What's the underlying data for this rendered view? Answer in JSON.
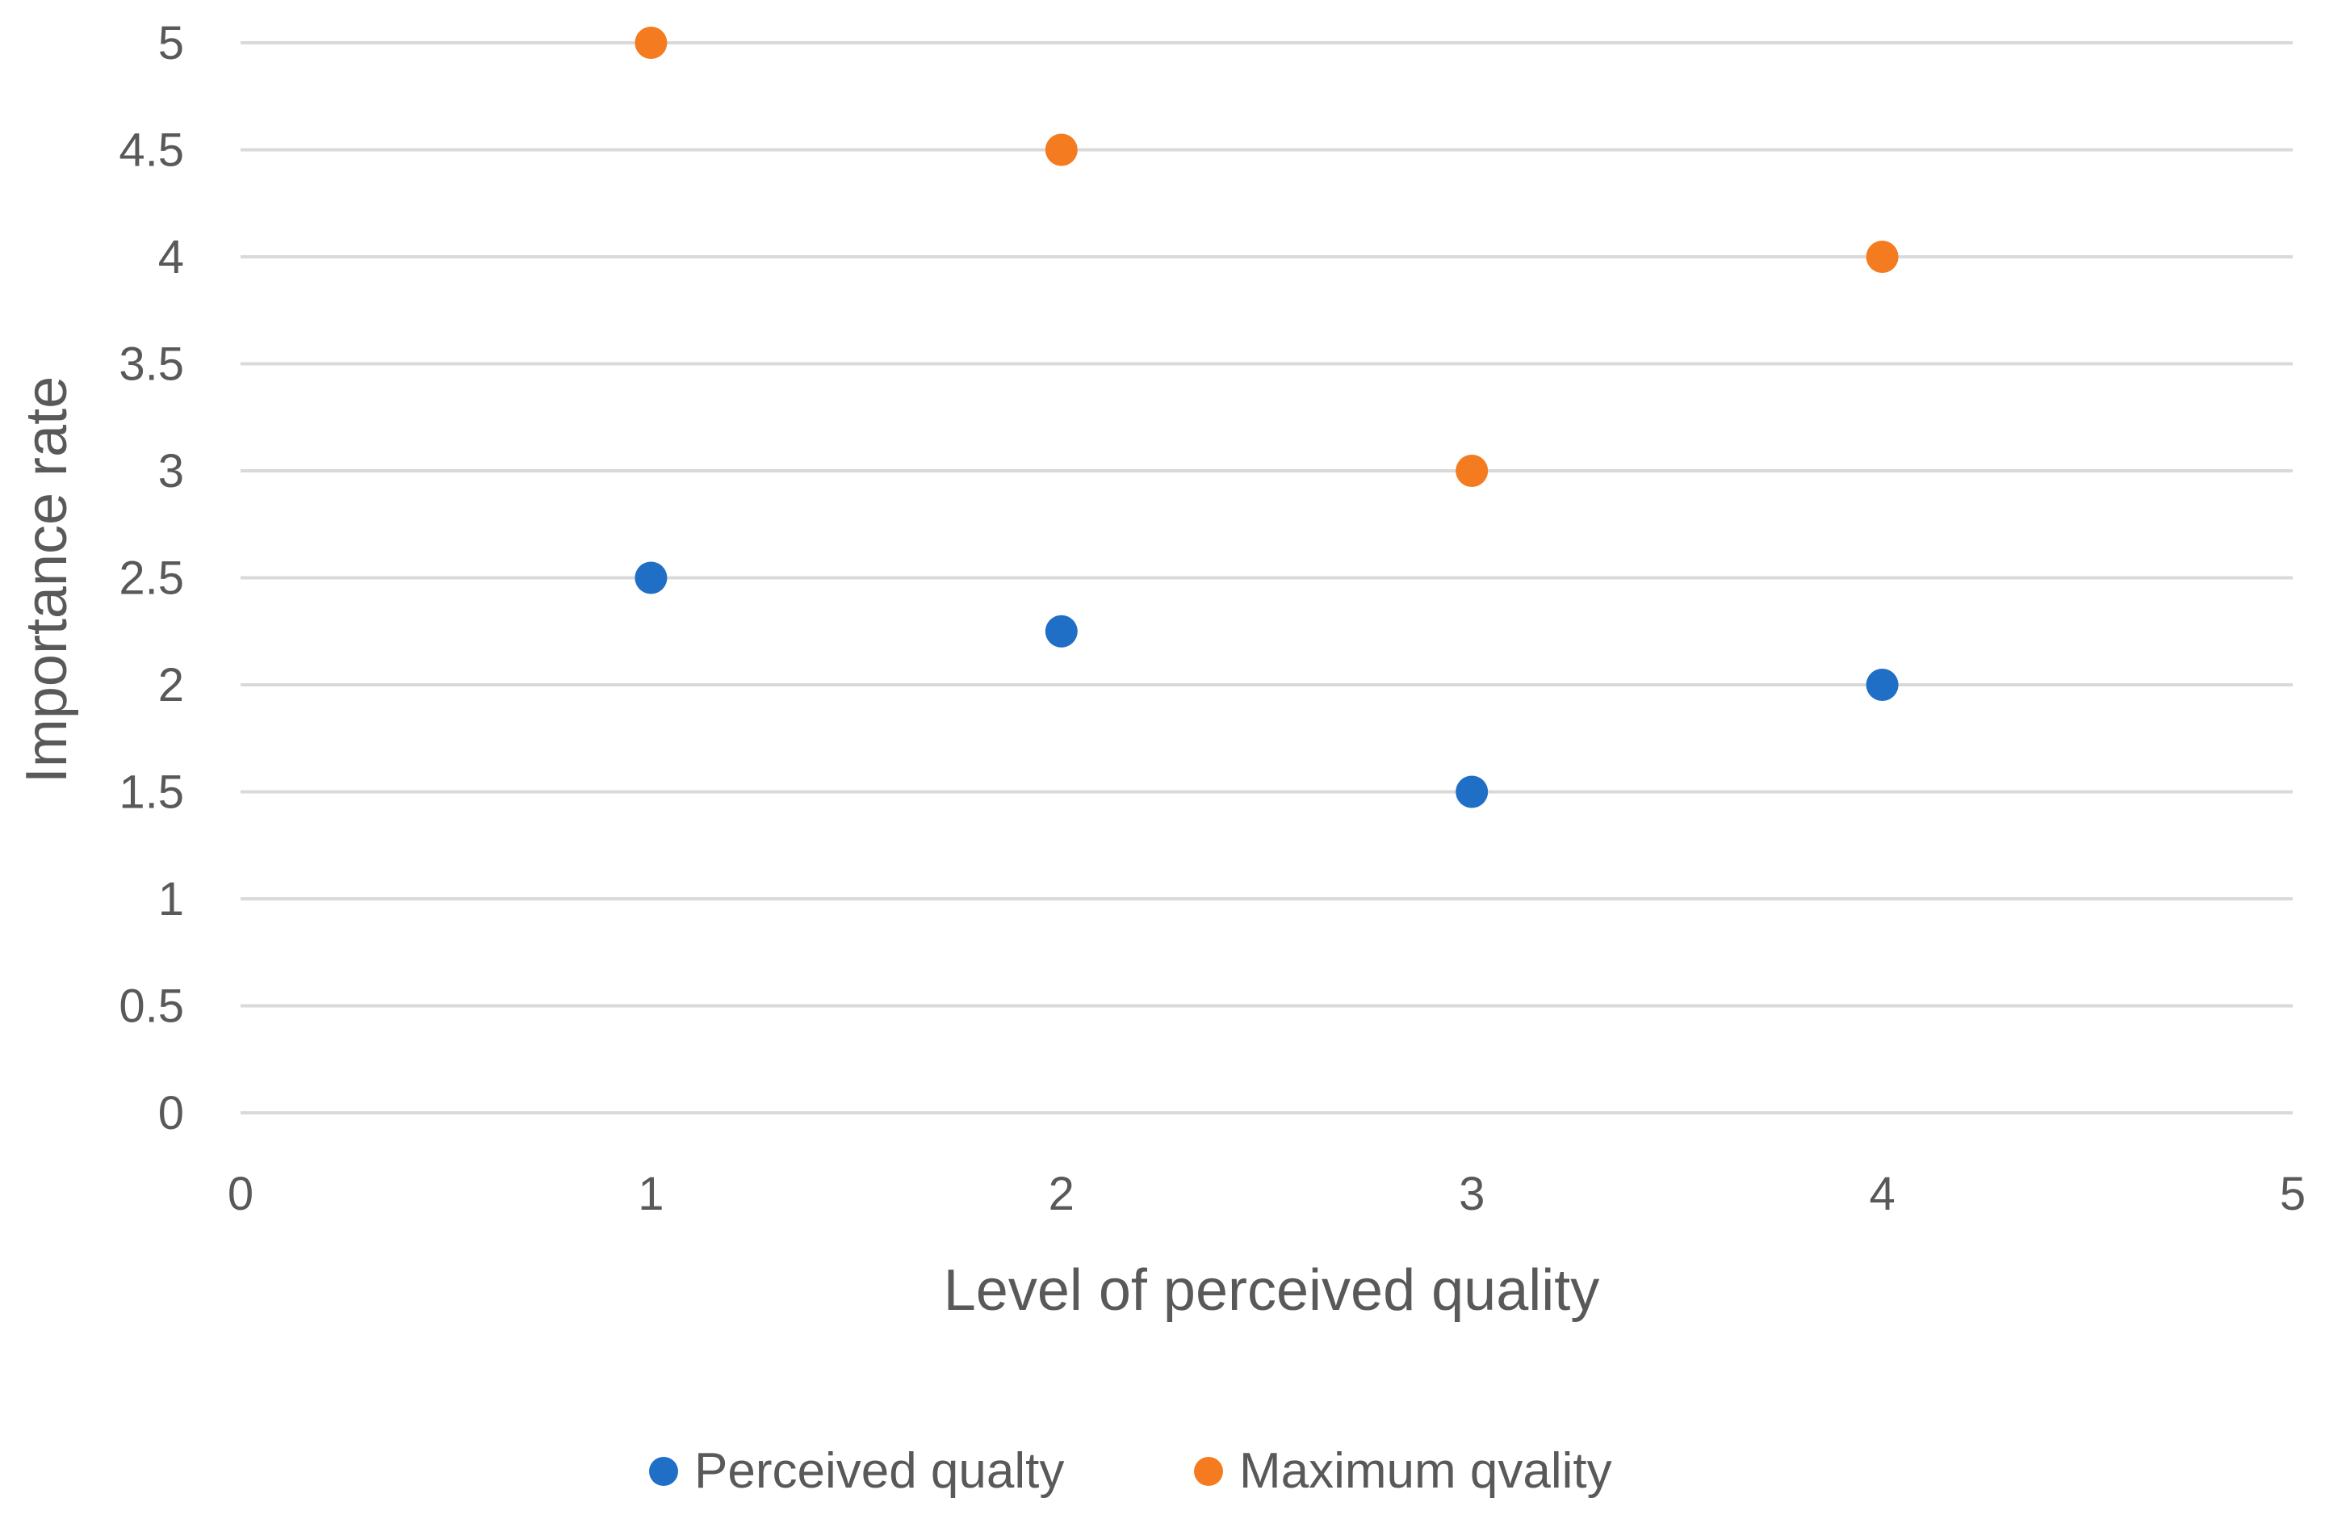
{
  "chart_data": {
    "type": "scatter",
    "title": "",
    "xlabel": "Level of perceived quality",
    "ylabel": "Importance rate",
    "xlim": [
      0,
      5
    ],
    "ylim": [
      0,
      5
    ],
    "x_ticks": [
      0,
      1,
      2,
      3,
      4,
      5
    ],
    "y_ticks": [
      0,
      0.5,
      1,
      1.5,
      2,
      2.5,
      3,
      3.5,
      4,
      4.5,
      5
    ],
    "x_tick_labels": [
      "0",
      "1",
      "2",
      "3",
      "4",
      "5"
    ],
    "y_tick_labels": [
      "0",
      "0.5",
      "1",
      "1.5",
      "2",
      "2.5",
      "3",
      "3.5",
      "4",
      "4.5",
      "5"
    ],
    "grid": "horizontal",
    "legend_position": "bottom",
    "series": [
      {
        "name": "Perceived qualty",
        "color": "#1f6fc6",
        "x": [
          1,
          2,
          3,
          4
        ],
        "y": [
          2.5,
          2.25,
          1.5,
          2
        ]
      },
      {
        "name": "Maximum qvality",
        "color": "#f47b20",
        "x": [
          1,
          2,
          3,
          4
        ],
        "y": [
          5,
          4.5,
          3,
          4
        ]
      }
    ]
  }
}
